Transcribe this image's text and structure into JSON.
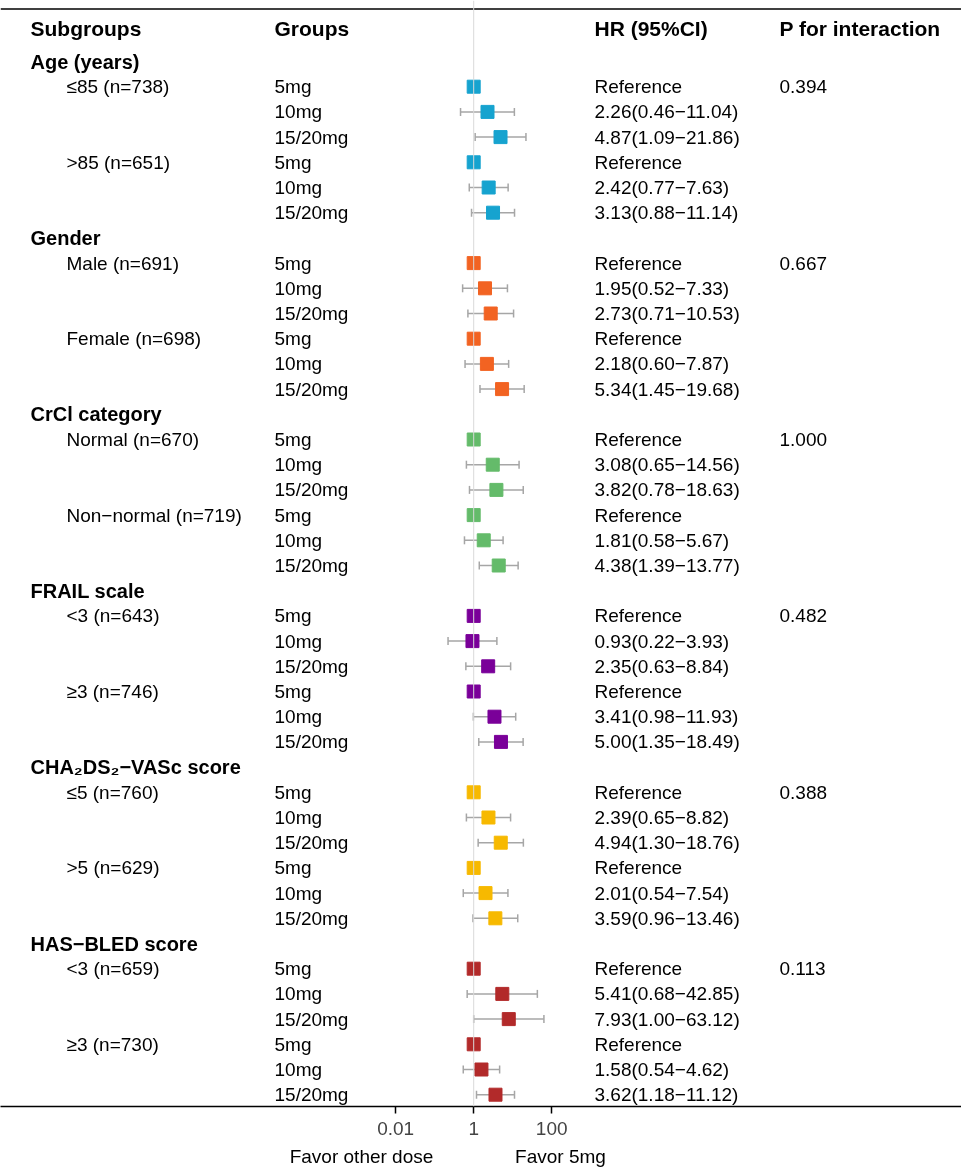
{
  "chart_data": {
    "type": "scatter",
    "orientation": "horizontal",
    "marker": "square",
    "grid": false,
    "log": "x",
    "xlim": [
      7.4e-13,
      3200000000000.0
    ],
    "xticks": [
      0.01,
      1,
      100
    ],
    "ref_lines": [
      {
        "axis": "x",
        "value": 1,
        "color": "#d9d9d9"
      }
    ],
    "annotations": [
      "Subgroups",
      "Groups",
      "HR (95%CI)",
      "P for interaction",
      "Age (years)",
      "Gender",
      "CrCl category",
      "FRAIL scale",
      "CHA₂DS₂−VASc score",
      "HAS−BLED score",
      "0.394",
      "0.667",
      "1.000",
      "0.482",
      "0.388",
      "0.113",
      "≤85 (n=738)",
      ">85 (n=651)",
      "Male (n=691)",
      "Female (n=698)",
      "Normal (n=670)",
      "Non−normal (n=719)",
      "<3 (n=643)",
      "≥3 (n=746)",
      "≤5 (n=760)",
      ">5 (n=629)",
      "<3 (n=659)",
      "≥3 (n=730)",
      "Reference",
      "2.26(0.46−11.04)",
      "4.87(1.09−21.86)",
      "Reference",
      "2.42(0.77−7.63)",
      "3.13(0.88−11.14)",
      "Reference",
      "1.95(0.52−7.33)",
      "2.73(0.71−10.53)",
      "Reference",
      "2.18(0.60−7.87)",
      "5.34(1.45−19.68)",
      "Reference",
      "3.08(0.65−14.56)",
      "3.82(0.78−18.63)",
      "Reference",
      "1.81(0.58−5.67)",
      "4.38(1.39−13.77)",
      "Reference",
      "0.93(0.22−3.93)",
      "2.35(0.63−8.84)",
      "Reference",
      "3.41(0.98−11.93)",
      "5.00(1.35−18.49)",
      "Reference",
      "2.39(0.65−8.82)",
      "4.94(1.30−18.76)",
      "Reference",
      "2.01(0.54−7.54)",
      "3.59(0.96−13.46)",
      "Reference",
      "5.41(0.68−42.85)",
      "7.93(1.00−63.12)",
      "Reference",
      "1.58(0.54−4.62)",
      "3.62(1.18−11.12)",
      "Favor other dose",
      "Favor 5mg"
    ],
    "categories": [
      null,
      "5mg",
      "10mg",
      "15/20mg",
      "5mg",
      "10mg",
      "15/20mg",
      null,
      "5mg",
      "10mg",
      "15/20mg",
      "5mg",
      "10mg",
      "15/20mg",
      null,
      "5mg",
      "10mg",
      "15/20mg",
      "5mg",
      "10mg",
      "15/20mg",
      null,
      "5mg",
      "10mg",
      "15/20mg",
      "5mg",
      "10mg",
      "15/20mg",
      null,
      "5mg",
      "10mg",
      "15/20mg",
      "5mg",
      "10mg",
      "15/20mg",
      null,
      "5mg",
      "10mg",
      "15/20mg",
      "5mg",
      "10mg",
      "15/20mg"
    ],
    "series": [
      {
        "color": "#16a3cf",
        "values": [
          null,
          1,
          2.26,
          4.87,
          1,
          2.42,
          3.13,
          null,
          null,
          null,
          null,
          null,
          null,
          null,
          null,
          null,
          null,
          null,
          null,
          null,
          null,
          null,
          null,
          null,
          null,
          null,
          null,
          null,
          null,
          null,
          null,
          null,
          null,
          null,
          null,
          null,
          null,
          null,
          null,
          null,
          null,
          null
        ],
        "errors": [
          null,
          null,
          [
            0.46,
            11.04
          ],
          [
            1.09,
            21.86
          ],
          null,
          [
            0.77,
            7.63
          ],
          [
            0.88,
            11.14
          ],
          null,
          null,
          null,
          null,
          null,
          null,
          null,
          null,
          null,
          null,
          null,
          null,
          null,
          null,
          null,
          null,
          null,
          null,
          null,
          null,
          null,
          null,
          null,
          null,
          null,
          null,
          null,
          null,
          null,
          null,
          null,
          null,
          null,
          null,
          null
        ]
      },
      {
        "color": "#f26322",
        "values": [
          null,
          null,
          null,
          null,
          null,
          null,
          null,
          null,
          1,
          1.95,
          2.73,
          1,
          2.18,
          5.34,
          null,
          null,
          null,
          null,
          null,
          null,
          null,
          null,
          null,
          null,
          null,
          null,
          null,
          null,
          null,
          null,
          null,
          null,
          null,
          null,
          null,
          null,
          null,
          null,
          null,
          null,
          null,
          null
        ],
        "errors": [
          null,
          null,
          null,
          null,
          null,
          null,
          null,
          null,
          null,
          [
            0.52,
            7.33
          ],
          [
            0.71,
            10.53
          ],
          null,
          [
            0.6,
            7.87
          ],
          [
            1.45,
            19.68
          ],
          null,
          null,
          null,
          null,
          null,
          null,
          null,
          null,
          null,
          null,
          null,
          null,
          null,
          null,
          null,
          null,
          null,
          null,
          null,
          null,
          null,
          null,
          null,
          null,
          null,
          null,
          null,
          null
        ]
      },
      {
        "color": "#64bb6a",
        "values": [
          null,
          null,
          null,
          null,
          null,
          null,
          null,
          null,
          null,
          null,
          null,
          null,
          null,
          null,
          null,
          1,
          3.08,
          3.82,
          1,
          1.81,
          4.38,
          null,
          null,
          null,
          null,
          null,
          null,
          null,
          null,
          null,
          null,
          null,
          null,
          null,
          null,
          null,
          null,
          null,
          null,
          null,
          null,
          null
        ],
        "errors": [
          null,
          null,
          null,
          null,
          null,
          null,
          null,
          null,
          null,
          null,
          null,
          null,
          null,
          null,
          null,
          null,
          [
            0.65,
            14.56
          ],
          [
            0.78,
            18.63
          ],
          null,
          [
            0.58,
            5.67
          ],
          [
            1.39,
            13.77
          ],
          null,
          null,
          null,
          null,
          null,
          null,
          null,
          null,
          null,
          null,
          null,
          null,
          null,
          null,
          null,
          null,
          null,
          null,
          null,
          null,
          null
        ]
      },
      {
        "color": "#7a0099",
        "values": [
          null,
          null,
          null,
          null,
          null,
          null,
          null,
          null,
          null,
          null,
          null,
          null,
          null,
          null,
          null,
          null,
          null,
          null,
          null,
          null,
          null,
          null,
          1,
          0.93,
          2.35,
          1,
          3.41,
          5.0,
          null,
          null,
          null,
          null,
          null,
          null,
          null,
          null,
          null,
          null,
          null,
          null,
          null,
          null
        ],
        "errors": [
          null,
          null,
          null,
          null,
          null,
          null,
          null,
          null,
          null,
          null,
          null,
          null,
          null,
          null,
          null,
          null,
          null,
          null,
          null,
          null,
          null,
          null,
          null,
          [
            0.22,
            3.93
          ],
          [
            0.63,
            8.84
          ],
          null,
          [
            0.98,
            11.93
          ],
          [
            1.35,
            18.49
          ],
          null,
          null,
          null,
          null,
          null,
          null,
          null,
          null,
          null,
          null,
          null,
          null,
          null,
          null
        ]
      },
      {
        "color": "#f7b900",
        "values": [
          null,
          null,
          null,
          null,
          null,
          null,
          null,
          null,
          null,
          null,
          null,
          null,
          null,
          null,
          null,
          null,
          null,
          null,
          null,
          null,
          null,
          null,
          null,
          null,
          null,
          null,
          null,
          null,
          null,
          1,
          2.39,
          4.94,
          1,
          2.01,
          3.59,
          null,
          null,
          null,
          null,
          null,
          null,
          null
        ],
        "errors": [
          null,
          null,
          null,
          null,
          null,
          null,
          null,
          null,
          null,
          null,
          null,
          null,
          null,
          null,
          null,
          null,
          null,
          null,
          null,
          null,
          null,
          null,
          null,
          null,
          null,
          null,
          null,
          null,
          null,
          null,
          [
            0.65,
            8.82
          ],
          [
            1.3,
            18.76
          ],
          null,
          [
            0.54,
            7.54
          ],
          [
            0.96,
            13.46
          ],
          null,
          null,
          null,
          null,
          null,
          null,
          null
        ]
      },
      {
        "color": "#b22a2a",
        "values": [
          null,
          null,
          null,
          null,
          null,
          null,
          null,
          null,
          null,
          null,
          null,
          null,
          null,
          null,
          null,
          null,
          null,
          null,
          null,
          null,
          null,
          null,
          null,
          null,
          null,
          null,
          null,
          null,
          null,
          null,
          null,
          null,
          null,
          null,
          null,
          null,
          1,
          5.41,
          7.93,
          1,
          1.58,
          3.62
        ],
        "errors": [
          null,
          null,
          null,
          null,
          null,
          null,
          null,
          null,
          null,
          null,
          null,
          null,
          null,
          null,
          null,
          null,
          null,
          null,
          null,
          null,
          null,
          null,
          null,
          null,
          null,
          null,
          null,
          null,
          null,
          null,
          null,
          null,
          null,
          null,
          null,
          null,
          null,
          [
            0.68,
            42.85
          ],
          [
            1.0,
            63.12
          ],
          null,
          [
            0.54,
            4.62
          ],
          [
            1.18,
            11.12
          ]
        ]
      }
    ]
  }
}
